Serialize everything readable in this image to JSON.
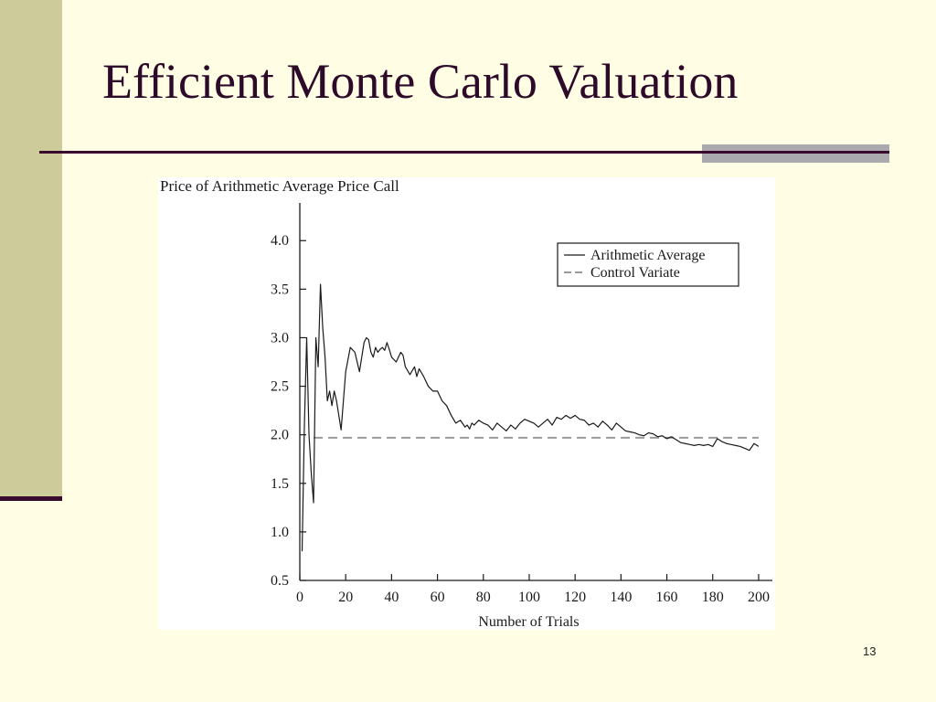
{
  "slide": {
    "title": "Efficient Monte Carlo Valuation",
    "page_number": "13"
  },
  "colors": {
    "background": "#FFFDE3",
    "sidebar": "#CCCB99",
    "accent_dark": "#3A0A2E",
    "title_text": "#2E0A2A",
    "rule_accent": "#A9A9AE",
    "series_arithmetic": "#1A1A1A",
    "series_control": "#9A9A9A"
  },
  "chart_data": {
    "type": "line",
    "title": "Price of Arithmetic Average Price Call",
    "xlabel": "Number of Trials",
    "ylabel": "",
    "xlim": [
      0,
      206
    ],
    "ylim": [
      0.5,
      4.2
    ],
    "x_ticks": [
      0,
      20,
      40,
      60,
      80,
      100,
      120,
      140,
      160,
      180,
      200
    ],
    "y_ticks": [
      0.5,
      1.0,
      1.5,
      2.0,
      2.5,
      3.0,
      3.5,
      4.0
    ],
    "y_tick_labels": [
      "0.5",
      "1.0",
      "1.5",
      "2.0",
      "2.5",
      "3.0",
      "3.5",
      "4.0"
    ],
    "grid": false,
    "legend_position": "top-right",
    "series": [
      {
        "name": "Arithmetic Average",
        "style": "solid",
        "x": [
          1,
          2,
          3,
          4,
          5,
          6,
          7,
          8,
          9,
          10,
          11,
          12,
          13,
          14,
          15,
          16,
          17,
          18,
          19,
          20,
          22,
          24,
          26,
          28,
          29,
          30,
          31,
          32,
          33,
          34,
          35,
          36,
          37,
          38,
          39,
          40,
          42,
          44,
          45,
          46,
          48,
          50,
          51,
          52,
          54,
          56,
          58,
          60,
          62,
          64,
          66,
          68,
          70,
          72,
          73,
          74,
          75,
          76,
          78,
          80,
          82,
          84,
          86,
          88,
          90,
          92,
          94,
          96,
          98,
          100,
          102,
          104,
          106,
          108,
          110,
          112,
          114,
          116,
          118,
          120,
          122,
          124,
          126,
          128,
          130,
          132,
          134,
          136,
          138,
          140,
          142,
          144,
          146,
          148,
          150,
          152,
          154,
          156,
          158,
          160,
          162,
          164,
          166,
          168,
          170,
          172,
          174,
          176,
          178,
          180,
          182,
          184,
          186,
          188,
          190,
          192,
          194,
          196,
          198,
          200
        ],
        "values": [
          0.8,
          2.1,
          3.0,
          2.0,
          1.6,
          1.3,
          3.0,
          2.7,
          3.55,
          3.1,
          2.8,
          2.35,
          2.45,
          2.3,
          2.45,
          2.35,
          2.2,
          2.05,
          2.35,
          2.65,
          2.9,
          2.85,
          2.65,
          2.95,
          3.0,
          2.98,
          2.85,
          2.8,
          2.9,
          2.85,
          2.88,
          2.9,
          2.87,
          2.95,
          2.88,
          2.8,
          2.75,
          2.85,
          2.82,
          2.7,
          2.62,
          2.7,
          2.6,
          2.68,
          2.6,
          2.5,
          2.45,
          2.45,
          2.35,
          2.3,
          2.2,
          2.12,
          2.15,
          2.08,
          2.1,
          2.06,
          2.12,
          2.1,
          2.15,
          2.12,
          2.1,
          2.05,
          2.12,
          2.08,
          2.04,
          2.1,
          2.06,
          2.12,
          2.16,
          2.14,
          2.12,
          2.08,
          2.12,
          2.16,
          2.1,
          2.18,
          2.16,
          2.2,
          2.17,
          2.2,
          2.16,
          2.15,
          2.1,
          2.12,
          2.08,
          2.14,
          2.1,
          2.05,
          2.12,
          2.08,
          2.04,
          2.03,
          2.02,
          2.0,
          1.99,
          2.02,
          2.01,
          1.98,
          1.99,
          1.96,
          1.98,
          1.95,
          1.92,
          1.91,
          1.9,
          1.89,
          1.9,
          1.89,
          1.9,
          1.88,
          1.96,
          1.93,
          1.91,
          1.9,
          1.89,
          1.88,
          1.86,
          1.84,
          1.91,
          1.88
        ]
      },
      {
        "name": "Control Variate",
        "style": "dashed",
        "x": [
          6,
          200
        ],
        "values": [
          1.97,
          1.97
        ]
      }
    ]
  }
}
